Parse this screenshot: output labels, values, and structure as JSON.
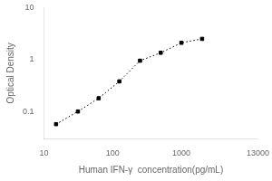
{
  "chart_data": {
    "type": "line",
    "xlabel": "Human IFN-γ  concentration(pg/mL)",
    "ylabel": "Optical Density",
    "x": [
      15,
      31.2,
      62.5,
      125,
      250,
      500,
      1000,
      2000
    ],
    "values": [
      0.057,
      0.1,
      0.18,
      0.38,
      0.95,
      1.35,
      2.1,
      2.5
    ],
    "xlim": [
      10,
      13000
    ],
    "ylim": [
      0.03,
      10
    ],
    "xticks": [
      10,
      100,
      1000,
      13000
    ],
    "yticks": [
      0.1,
      1,
      10
    ],
    "log": true,
    "grid": false,
    "color": "black",
    "marker": "square",
    "line_style": "dotted"
  }
}
